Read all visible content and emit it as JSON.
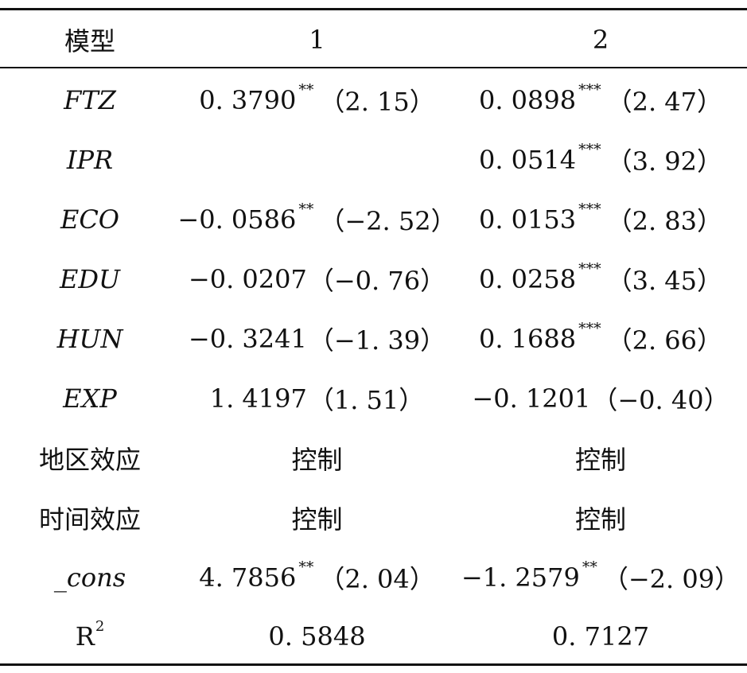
{
  "header": {
    "model_label": "模型",
    "col1": "1",
    "col2": "2"
  },
  "rows": [
    {
      "label": "FTZ",
      "c1": {
        "coef": "0. 3790",
        "stars": "**",
        "t": "（2. 15）"
      },
      "c2": {
        "coef": "0. 0898",
        "stars": "***",
        "t": "（2. 47）"
      }
    },
    {
      "label": "IPR",
      "c1": {
        "coef": "",
        "stars": "",
        "t": ""
      },
      "c2": {
        "coef": "0. 0514",
        "stars": "***",
        "t": "（3. 92）"
      }
    },
    {
      "label": "ECO",
      "c1": {
        "coef": "−0. 0586",
        "stars": "**",
        "t": "（−2. 52）"
      },
      "c2": {
        "coef": "0. 0153",
        "stars": "***",
        "t": "（2. 83）"
      }
    },
    {
      "label": "EDU",
      "c1": {
        "coef": "−0. 0207",
        "stars": "",
        "t": "（−0. 76）"
      },
      "c2": {
        "coef": "0. 0258",
        "stars": "***",
        "t": "（3. 45）"
      }
    },
    {
      "label": "HUN",
      "c1": {
        "coef": "−0. 3241",
        "stars": "",
        "t": "（−1. 39）"
      },
      "c2": {
        "coef": "0. 1688",
        "stars": "***",
        "t": "（2. 66）"
      }
    },
    {
      "label": "EXP",
      "c1": {
        "coef": "1. 4197",
        "stars": "",
        "t": "（1. 51）"
      },
      "c2": {
        "coef": "−0. 1201",
        "stars": "",
        "t": "（−0. 40）"
      }
    }
  ],
  "region_effect": {
    "label": "地区效应",
    "c1": "控制",
    "c2": "控制"
  },
  "time_effect": {
    "label": "时间效应",
    "c1": "控制",
    "c2": "控制"
  },
  "cons": {
    "label": "_cons",
    "c1": {
      "coef": "4. 7856",
      "stars": "**",
      "t": "（2. 04）"
    },
    "c2": {
      "coef": "−1. 2579",
      "stars": "**",
      "t": "（−2. 09）"
    }
  },
  "r2": {
    "label": "R",
    "sup": "2",
    "c1": "0. 5848",
    "c2": "0. 7127"
  }
}
